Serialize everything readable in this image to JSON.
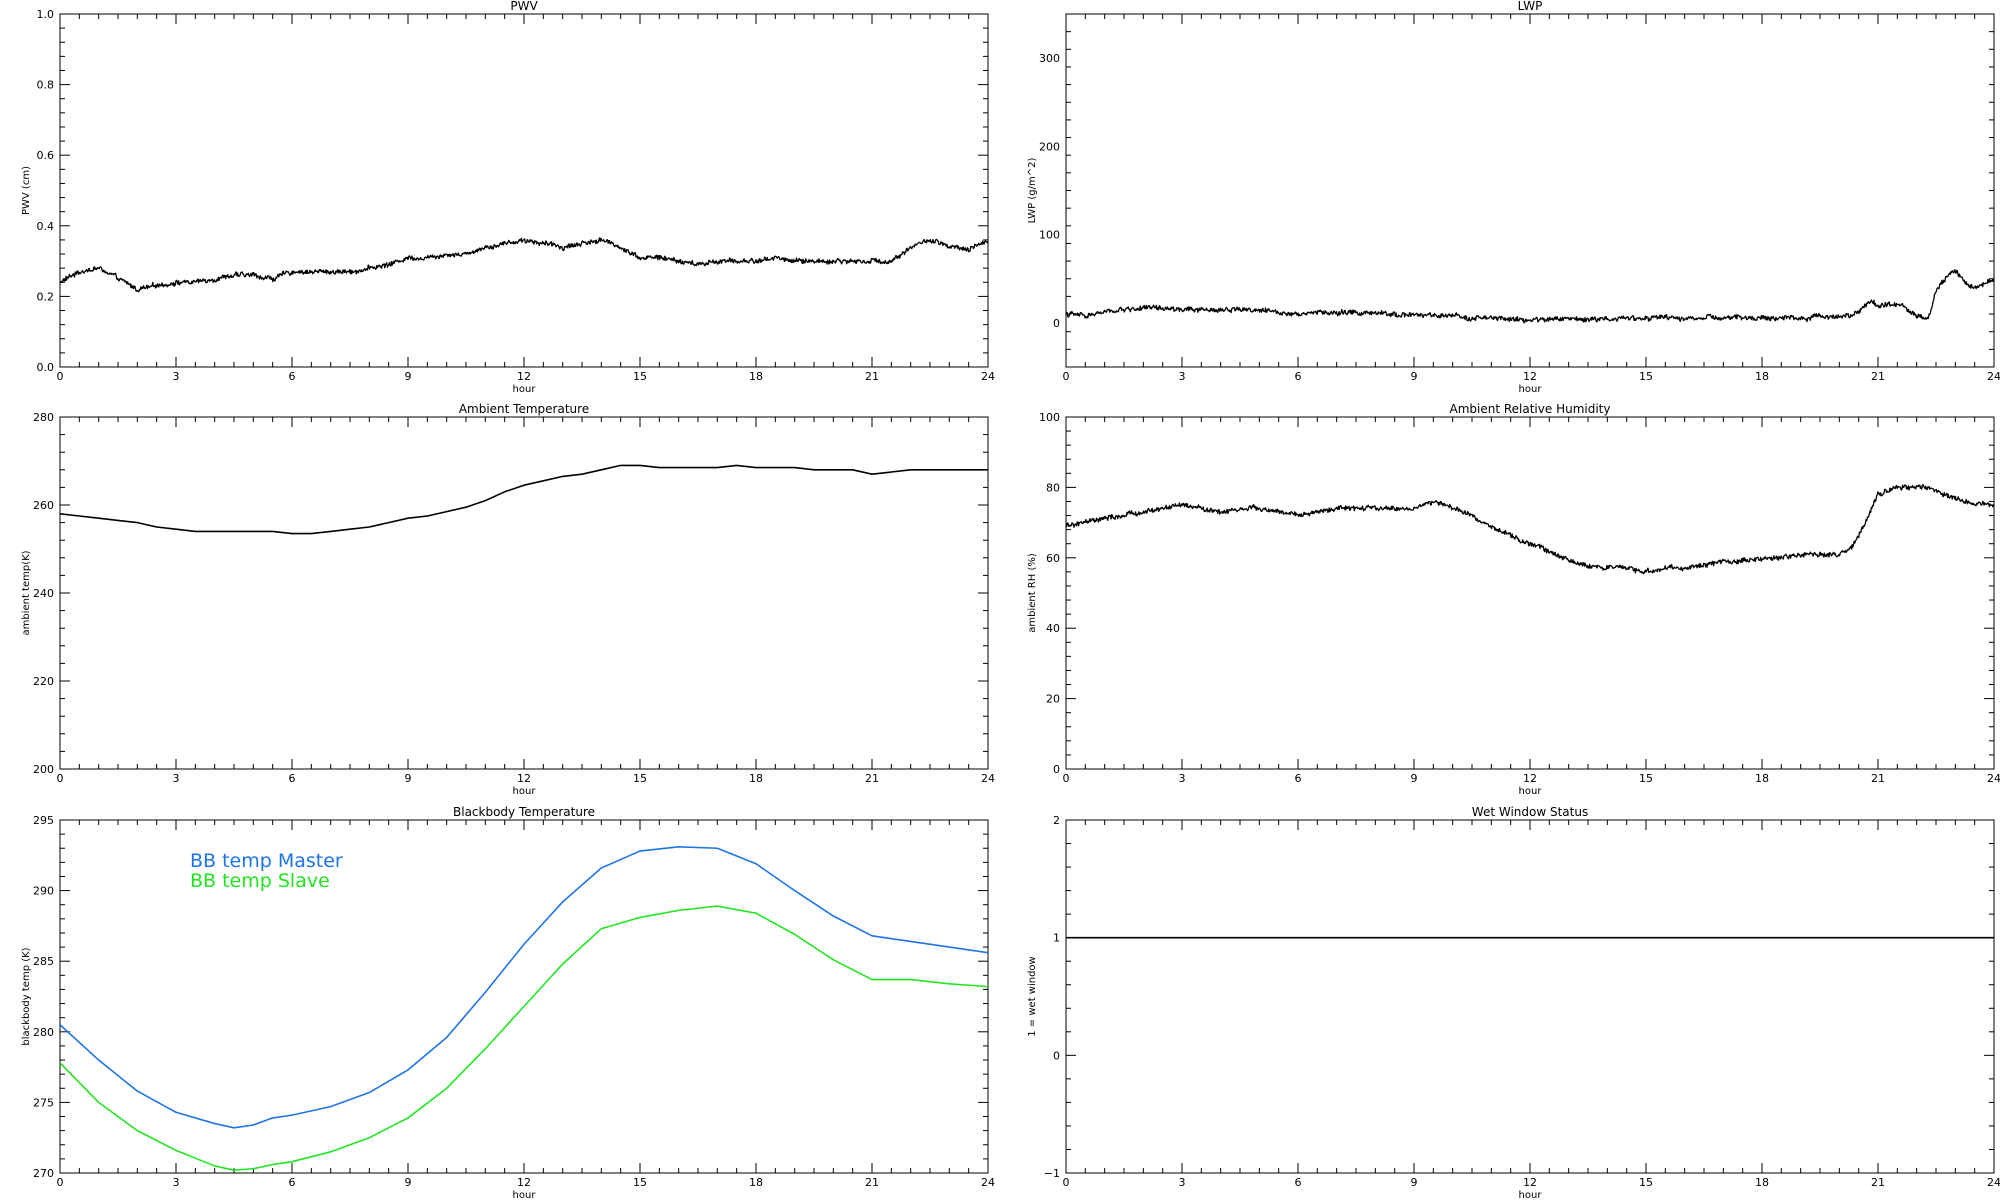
{
  "colors": {
    "axis": "#000000",
    "trace": "#000000",
    "master": "#1f74e6",
    "slave": "#22e522",
    "background": "#ffffff"
  },
  "chart_data": [
    {
      "id": "pwv",
      "type": "line",
      "title": "PWV",
      "xlabel": "hour",
      "ylabel": "PWV (cm)",
      "xlim": [
        0,
        24
      ],
      "ylim": [
        0,
        1
      ],
      "xticks": [
        0,
        3,
        6,
        9,
        12,
        15,
        18,
        21,
        24
      ],
      "yticks": [
        "0.0",
        "0.2",
        "0.4",
        "0.6",
        "0.8",
        "1.0"
      ],
      "noisy": true,
      "series": [
        {
          "color": "#000000",
          "x": [
            0,
            0.5,
            1,
            1.5,
            2,
            2.5,
            3,
            3.5,
            4,
            4.5,
            5,
            5.5,
            6,
            6.5,
            7,
            7.5,
            8,
            8.5,
            9,
            9.5,
            10,
            10.5,
            11,
            11.5,
            12,
            12.5,
            13,
            13.5,
            14,
            14.5,
            15,
            15.5,
            16,
            16.5,
            17,
            17.5,
            18,
            18.5,
            19,
            19.5,
            20,
            20.5,
            21,
            21.5,
            22,
            22.5,
            23,
            23.5,
            24
          ],
          "y": [
            0.24,
            0.27,
            0.28,
            0.25,
            0.22,
            0.23,
            0.24,
            0.24,
            0.25,
            0.26,
            0.26,
            0.25,
            0.27,
            0.27,
            0.27,
            0.27,
            0.28,
            0.29,
            0.31,
            0.31,
            0.32,
            0.32,
            0.34,
            0.35,
            0.36,
            0.35,
            0.34,
            0.35,
            0.36,
            0.34,
            0.31,
            0.31,
            0.3,
            0.29,
            0.3,
            0.3,
            0.3,
            0.31,
            0.3,
            0.3,
            0.3,
            0.3,
            0.3,
            0.3,
            0.34,
            0.36,
            0.34,
            0.33,
            0.36
          ]
        }
      ]
    },
    {
      "id": "lwp",
      "type": "line",
      "title": "LWP",
      "xlabel": "hour",
      "ylabel": "LWP (g/m^2)",
      "xlim": [
        0,
        24
      ],
      "ylim": [
        -50,
        350
      ],
      "xticks": [
        0,
        3,
        6,
        9,
        12,
        15,
        18,
        21,
        24
      ],
      "yticks": [
        "0",
        "100",
        "200",
        "300"
      ],
      "noisy": true,
      "series": [
        {
          "color": "#000000",
          "x": [
            0,
            0.5,
            1,
            1.5,
            2,
            2.5,
            3,
            3.5,
            4,
            4.5,
            5,
            5.5,
            6,
            6.5,
            7,
            7.5,
            8,
            8.5,
            9,
            9.5,
            10,
            10.5,
            11,
            11.5,
            12,
            12.5,
            13,
            13.5,
            14,
            14.5,
            15,
            15.5,
            16,
            16.5,
            17,
            17.5,
            18,
            18.5,
            19,
            19.5,
            20,
            20.5,
            20.8,
            21,
            21.3,
            21.6,
            22,
            22.3,
            22.5,
            22.8,
            23,
            23.3,
            23.6,
            24
          ],
          "y": [
            10,
            8,
            12,
            15,
            17,
            16,
            15,
            14,
            15,
            16,
            14,
            12,
            11,
            12,
            11,
            12,
            10,
            10,
            9,
            8,
            7,
            6,
            5,
            4,
            3,
            4,
            5,
            4,
            5,
            6,
            5,
            6,
            5,
            6,
            5,
            6,
            5,
            6,
            5,
            7,
            8,
            12,
            25,
            18,
            22,
            20,
            8,
            5,
            35,
            55,
            60,
            45,
            40,
            50
          ]
        }
      ]
    },
    {
      "id": "ambient-temperature",
      "type": "line",
      "title": "Ambient Temperature",
      "xlabel": "hour",
      "ylabel": "ambient temp(K)",
      "xlim": [
        0,
        24
      ],
      "ylim": [
        200,
        280
      ],
      "xticks": [
        0,
        3,
        6,
        9,
        12,
        15,
        18,
        21,
        24
      ],
      "yticks": [
        "200",
        "220",
        "240",
        "260",
        "280"
      ],
      "noisy": false,
      "series": [
        {
          "color": "#000000",
          "x": [
            0,
            0.5,
            1,
            1.5,
            2,
            2.5,
            3,
            3.5,
            4,
            4.5,
            5,
            5.5,
            6,
            6.5,
            7,
            7.5,
            8,
            8.5,
            9,
            9.5,
            10,
            10.5,
            11,
            11.5,
            12,
            12.5,
            13,
            13.5,
            14,
            14.5,
            15,
            15.5,
            16,
            16.5,
            17,
            17.5,
            18,
            18.5,
            19,
            19.5,
            20,
            20.5,
            21,
            21.5,
            22,
            22.5,
            23,
            23.5,
            24
          ],
          "y": [
            258,
            257.5,
            257,
            256.5,
            256,
            255,
            254.5,
            254,
            254,
            254,
            254,
            254,
            253.5,
            253.5,
            254,
            254.5,
            255,
            256,
            257,
            257.5,
            258.5,
            259.5,
            261,
            263,
            264.5,
            265.5,
            266.5,
            267,
            268,
            269,
            269,
            268.5,
            268.5,
            268.5,
            268.5,
            269,
            268.5,
            268.5,
            268.5,
            268,
            268,
            268,
            267,
            267.5,
            268,
            268,
            268,
            268,
            268
          ]
        }
      ]
    },
    {
      "id": "ambient-relative-humidity",
      "type": "line",
      "title": "Ambient Relative Humidity",
      "xlabel": "hour",
      "ylabel": "ambient RH (%)",
      "xlim": [
        0,
        24
      ],
      "ylim": [
        0,
        100
      ],
      "xticks": [
        0,
        3,
        6,
        9,
        12,
        15,
        18,
        21,
        24
      ],
      "yticks": [
        "0",
        "20",
        "40",
        "60",
        "80",
        "100"
      ],
      "noisy": true,
      "series": [
        {
          "color": "#000000",
          "x": [
            0,
            0.5,
            1,
            1.5,
            2,
            2.5,
            3,
            3.5,
            4,
            4.5,
            5,
            5.5,
            6,
            6.5,
            7,
            7.5,
            8,
            8.5,
            9,
            9.5,
            10,
            10.5,
            11,
            11.5,
            12,
            12.5,
            13,
            13.5,
            14,
            14.5,
            15,
            15.5,
            16,
            16.5,
            17,
            17.5,
            18,
            18.5,
            19,
            19.5,
            20,
            20.3,
            20.6,
            21,
            21.5,
            22,
            22.5,
            23,
            23.5,
            24
          ],
          "y": [
            69,
            70,
            71,
            72,
            73,
            74,
            75,
            74,
            73,
            74,
            74,
            73,
            72,
            73,
            74,
            74,
            74,
            74,
            74,
            76,
            74,
            72,
            69,
            66,
            64,
            62,
            59,
            58,
            57,
            57,
            56,
            57,
            57,
            58,
            59,
            59,
            60,
            60,
            61,
            61,
            61,
            63,
            68,
            78,
            80,
            80,
            79,
            77,
            75,
            75
          ]
        }
      ]
    },
    {
      "id": "blackbody-temperature",
      "type": "line",
      "title": "Blackbody Temperature",
      "xlabel": "hour",
      "ylabel": "blackbody temp (K)",
      "xlim": [
        0,
        24
      ],
      "ylim": [
        270,
        295
      ],
      "xticks": [
        0,
        3,
        6,
        9,
        12,
        15,
        18,
        21,
        24
      ],
      "yticks": [
        "270",
        "275",
        "280",
        "285",
        "290",
        "295"
      ],
      "noisy": false,
      "legend": [
        "BB temp Master",
        "BB temp Slave"
      ],
      "series": [
        {
          "name": "BB temp Master",
          "color": "#1f74e6",
          "x": [
            0,
            1,
            2,
            3,
            4,
            4.5,
            5,
            5.5,
            6,
            7,
            8,
            9,
            10,
            11,
            12,
            13,
            14,
            15,
            16,
            17,
            18,
            19,
            20,
            21,
            22,
            23,
            24
          ],
          "y": [
            280.5,
            278,
            275.8,
            274.3,
            273.5,
            273.2,
            273.4,
            273.9,
            274.1,
            274.7,
            275.7,
            277.3,
            279.6,
            282.8,
            286.2,
            289.2,
            291.6,
            292.8,
            293.1,
            293.0,
            291.9,
            290.0,
            288.2,
            286.8,
            286.4,
            286.0,
            285.6
          ]
        },
        {
          "name": "BB temp Slave",
          "color": "#22e522",
          "x": [
            0,
            1,
            2,
            3,
            4,
            4.5,
            5,
            5.5,
            6,
            7,
            8,
            9,
            10,
            11,
            12,
            13,
            14,
            15,
            16,
            17,
            18,
            19,
            20,
            21,
            22,
            23,
            24
          ],
          "y": [
            277.8,
            275.0,
            273.0,
            271.6,
            270.5,
            270.2,
            270.3,
            270.6,
            270.8,
            271.5,
            272.5,
            273.9,
            276.0,
            278.8,
            281.8,
            284.8,
            287.3,
            288.1,
            288.6,
            288.9,
            288.4,
            286.9,
            285.1,
            283.7,
            283.7,
            283.4,
            283.2
          ]
        }
      ]
    },
    {
      "id": "wet-window-status",
      "type": "line",
      "title": "Wet Window Status",
      "xlabel": "hour",
      "ylabel": "1 = wet window",
      "xlim": [
        0,
        24
      ],
      "ylim": [
        -1,
        2
      ],
      "xticks": [
        0,
        3,
        6,
        9,
        12,
        15,
        18,
        21,
        24
      ],
      "yticks": [
        "−1",
        "0",
        "1",
        "2"
      ],
      "noisy": false,
      "series": [
        {
          "color": "#000000",
          "x": [
            0,
            24
          ],
          "y": [
            1,
            1
          ]
        }
      ]
    }
  ]
}
